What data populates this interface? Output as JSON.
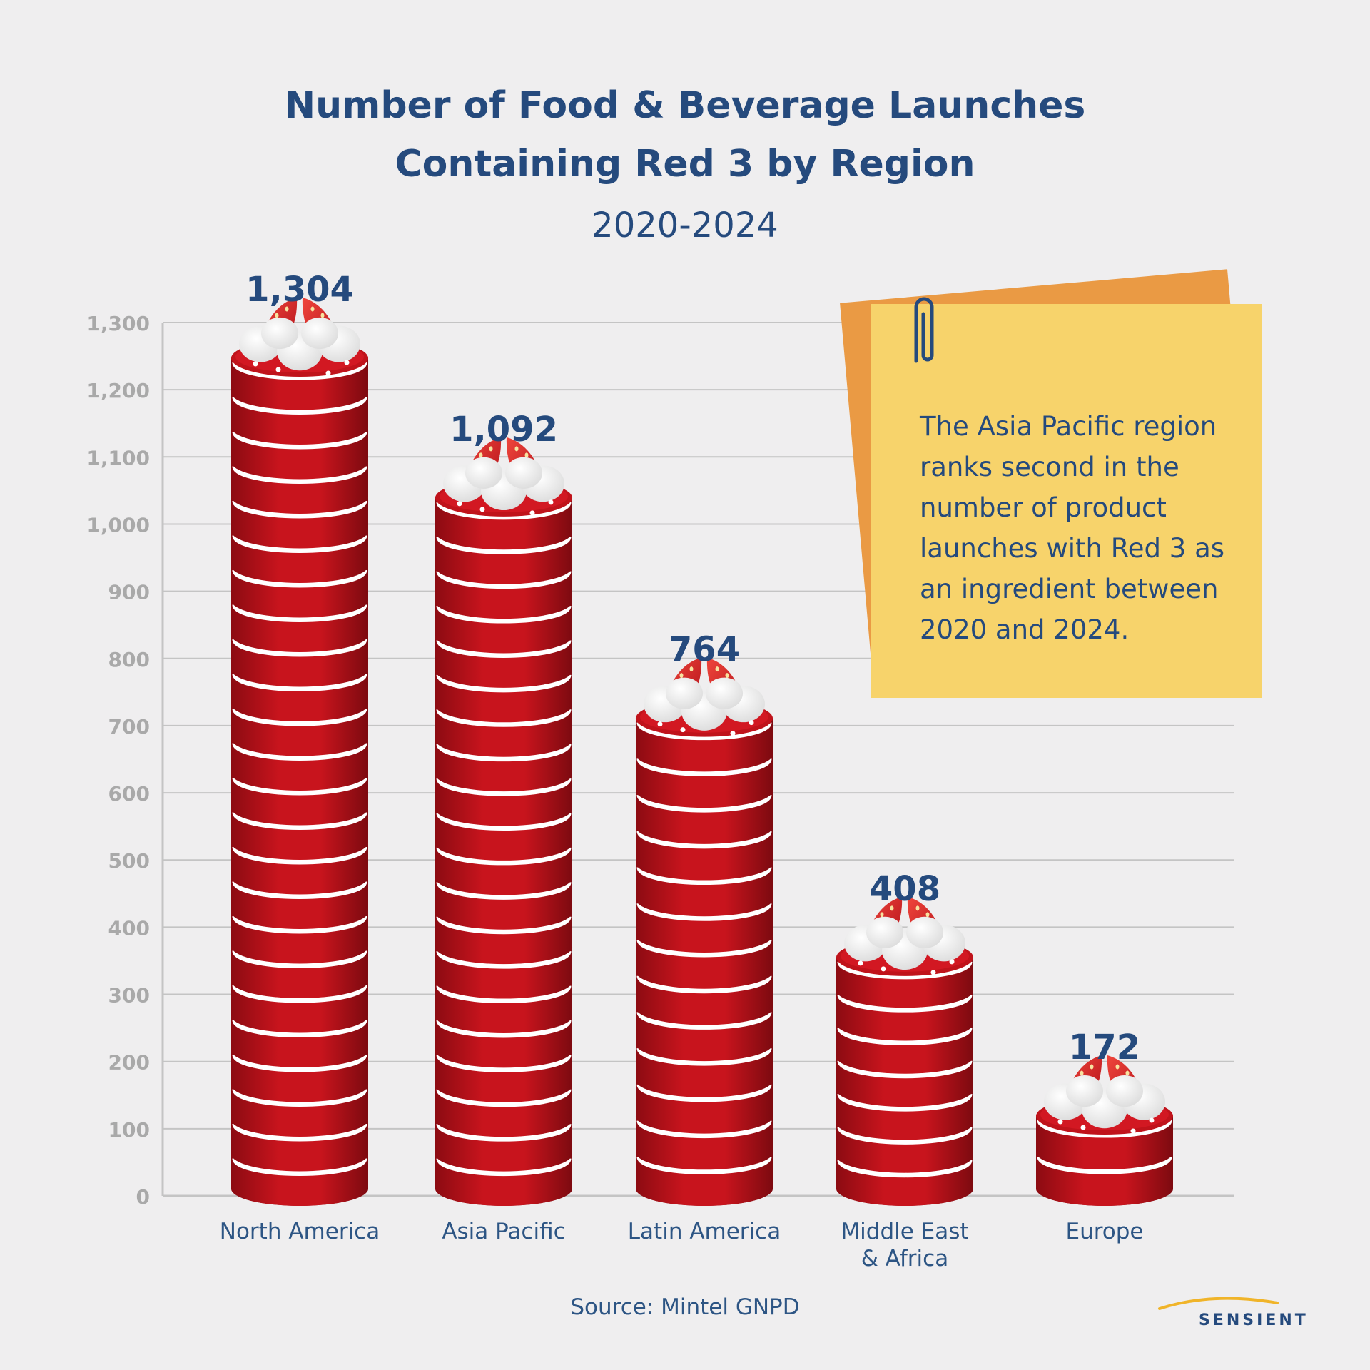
{
  "chart_data": {
    "type": "bar",
    "title": "Number of Food & Beverage Launches Containing Red 3 by Region",
    "title_lines": [
      "Number of Food & Beverage Launches",
      "Containing Red 3 by Region"
    ],
    "subtitle": "2020-2024",
    "categories": [
      "North America",
      "Asia Pacific",
      "Latin America",
      "Middle East & Africa",
      "Europe"
    ],
    "category_lines": [
      [
        "North America"
      ],
      [
        "Asia Pacific"
      ],
      [
        "Latin America"
      ],
      [
        "Middle East",
        "& Africa"
      ],
      [
        "Europe"
      ]
    ],
    "values": [
      1304,
      1092,
      764,
      408,
      172
    ],
    "value_labels": [
      "1,304",
      "1,092",
      "764",
      "408",
      "172"
    ],
    "ylim": [
      0,
      1300
    ],
    "yticks": [
      0,
      100,
      200,
      300,
      400,
      500,
      600,
      700,
      800,
      900,
      1000,
      1100,
      1200,
      1300
    ],
    "ytick_labels": [
      "0",
      "100",
      "200",
      "300",
      "400",
      "500",
      "600",
      "700",
      "800",
      "900",
      "1,000",
      "1,100",
      "1,200",
      "1,300"
    ],
    "grid": true,
    "xlabel": "",
    "ylabel": ""
  },
  "note": {
    "text": "The Asia Pacific region ranks second in the number of product launches with Red 3 as an ingredient between 2020 and 2024."
  },
  "source": "Source: Mintel GNPD",
  "brand": "SENSIENT",
  "colors": {
    "title": "#254a7d",
    "cake_red": "#c0131b",
    "cake_dark": "#8c0b12",
    "cream": "#ffffff",
    "grid": "#c4c4c4",
    "tick_text": "#a9a9a9",
    "note_yellow": "#f7d36b",
    "note_orange": "#ea9a44"
  }
}
